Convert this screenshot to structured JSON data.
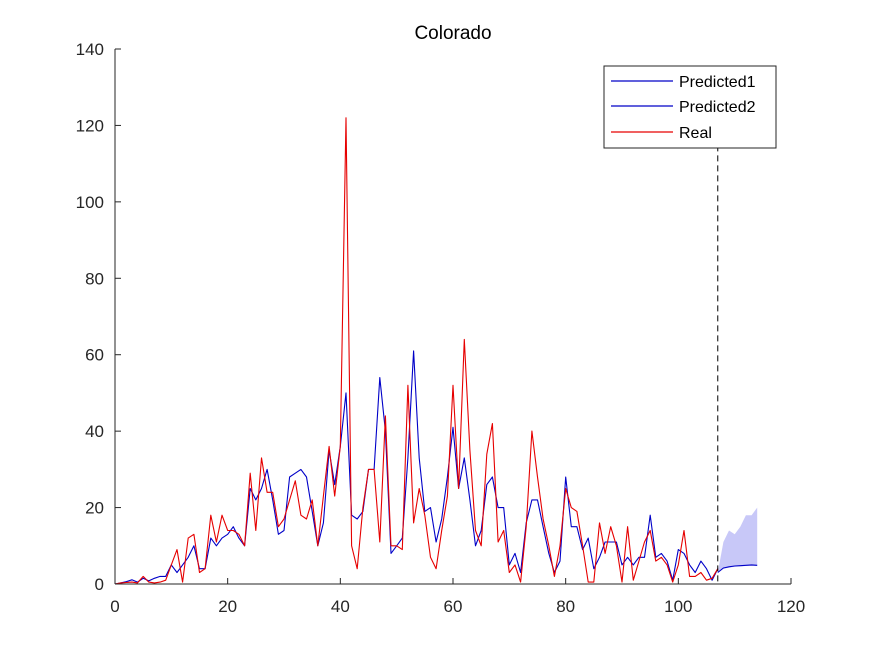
{
  "chart_data": {
    "type": "line",
    "title": "Colorado",
    "xlabel": "",
    "ylabel": "",
    "xlim": [
      0,
      120
    ],
    "ylim": [
      0,
      140
    ],
    "x_ticks": [
      0,
      20,
      40,
      60,
      80,
      100,
      120
    ],
    "y_ticks": [
      0,
      20,
      40,
      60,
      80,
      100,
      120,
      140
    ],
    "grid": false,
    "legend_position": "top-right",
    "series": [
      {
        "name": "Predicted1",
        "color": "#0000c8",
        "x": [
          0,
          1,
          2,
          3,
          4,
          5,
          6,
          7,
          8,
          9,
          10,
          11,
          12,
          13,
          14,
          15,
          16,
          17,
          18,
          19,
          20,
          21,
          22,
          23,
          24,
          25,
          26,
          27,
          28,
          29,
          30,
          31,
          32,
          33,
          34,
          35,
          36,
          37,
          38,
          39,
          40,
          41,
          42,
          43,
          44,
          45,
          46,
          47,
          48,
          49,
          50,
          51,
          52,
          53,
          54,
          55,
          56,
          57,
          58,
          59,
          60,
          61,
          62,
          63,
          64,
          65,
          66,
          67,
          68,
          69,
          70,
          71,
          72,
          73,
          74,
          75,
          76,
          77,
          78,
          79,
          80,
          81,
          82,
          83,
          84,
          85,
          86,
          87,
          88,
          89,
          90,
          91,
          92,
          93,
          94,
          95,
          96,
          97,
          98,
          99,
          100,
          101,
          102,
          103,
          104,
          105,
          106,
          107
        ],
        "values": [
          0,
          0.3,
          0.6,
          1.1,
          0.5,
          1.5,
          0.8,
          1.5,
          2,
          2,
          5,
          3,
          5,
          7,
          10,
          4,
          4,
          12,
          10,
          12,
          13,
          15,
          12,
          10,
          25,
          22,
          25,
          30,
          22,
          13,
          14,
          28,
          29,
          30,
          28,
          19,
          10,
          16,
          35,
          26,
          36,
          50,
          18,
          17,
          19,
          30,
          30,
          54,
          40,
          8,
          10,
          12,
          33,
          61,
          33,
          19,
          20,
          11,
          17,
          28,
          41,
          25,
          33,
          22,
          10,
          14,
          26,
          28,
          20,
          20,
          5,
          8,
          3,
          16,
          22,
          22,
          15,
          8,
          3,
          6,
          28,
          15,
          15,
          9,
          12,
          4,
          7,
          11,
          11,
          11,
          5,
          7,
          5,
          7,
          7,
          18,
          7,
          8,
          6,
          1,
          9,
          8,
          5,
          3,
          6,
          4,
          1,
          4
        ]
      },
      {
        "name": "Predicted2",
        "color": "#0000c8",
        "x": [
          107,
          108,
          109,
          110,
          111,
          112,
          113,
          114
        ],
        "values": [
          3,
          4.2,
          4.5,
          4.7,
          4.8,
          4.9,
          5.0,
          4.9
        ],
        "band_lower": [
          3,
          4,
          4.3,
          4.5,
          4.6,
          4.7,
          4.8,
          4.7
        ],
        "band_upper": [
          3,
          11,
          14,
          13,
          15,
          18,
          18,
          20
        ]
      },
      {
        "name": "Real",
        "color": "#e60000",
        "x": [
          0,
          1,
          2,
          3,
          4,
          5,
          6,
          7,
          8,
          9,
          10,
          11,
          12,
          13,
          14,
          15,
          16,
          17,
          18,
          19,
          20,
          21,
          22,
          23,
          24,
          25,
          26,
          27,
          28,
          29,
          30,
          31,
          32,
          33,
          34,
          35,
          36,
          37,
          38,
          39,
          40,
          41,
          42,
          43,
          44,
          45,
          46,
          47,
          48,
          49,
          50,
          51,
          52,
          53,
          54,
          55,
          56,
          57,
          58,
          59,
          60,
          61,
          62,
          63,
          64,
          65,
          66,
          67,
          68,
          69,
          70,
          71,
          72,
          73,
          74,
          75,
          76,
          77,
          78,
          79,
          80,
          81,
          82,
          83,
          84,
          85,
          86,
          87,
          88,
          89,
          90,
          91,
          92,
          93,
          94,
          95,
          96,
          97,
          98,
          99,
          100,
          101,
          102,
          103,
          104,
          105,
          106,
          107
        ],
        "values": [
          0,
          0.3,
          0.4,
          0.5,
          0.3,
          2,
          0.5,
          0.3,
          0.5,
          1,
          5,
          9,
          0.5,
          12,
          13,
          3,
          4,
          18,
          11,
          18,
          14,
          14,
          13,
          10,
          29,
          14,
          33,
          24,
          24,
          15,
          17,
          22,
          27,
          18,
          17,
          22,
          10,
          23,
          36,
          23,
          36,
          122,
          10,
          4,
          20,
          30,
          30,
          11,
          44,
          10,
          10,
          9,
          52,
          16,
          25,
          18,
          7,
          4,
          14,
          23,
          52,
          25,
          64,
          35,
          14,
          10,
          34,
          42,
          11,
          14,
          3,
          5,
          0.5,
          15,
          40,
          28,
          17,
          10,
          2,
          10,
          25,
          20,
          19,
          10,
          0.5,
          0.5,
          16,
          8,
          15,
          10,
          0.5,
          15,
          1,
          6,
          11,
          14,
          6,
          7,
          5,
          0.5,
          5,
          14,
          2,
          2,
          3,
          1,
          1.5,
          4
        ]
      }
    ],
    "vertical_marker": {
      "x": 107,
      "style": "dashed"
    }
  }
}
